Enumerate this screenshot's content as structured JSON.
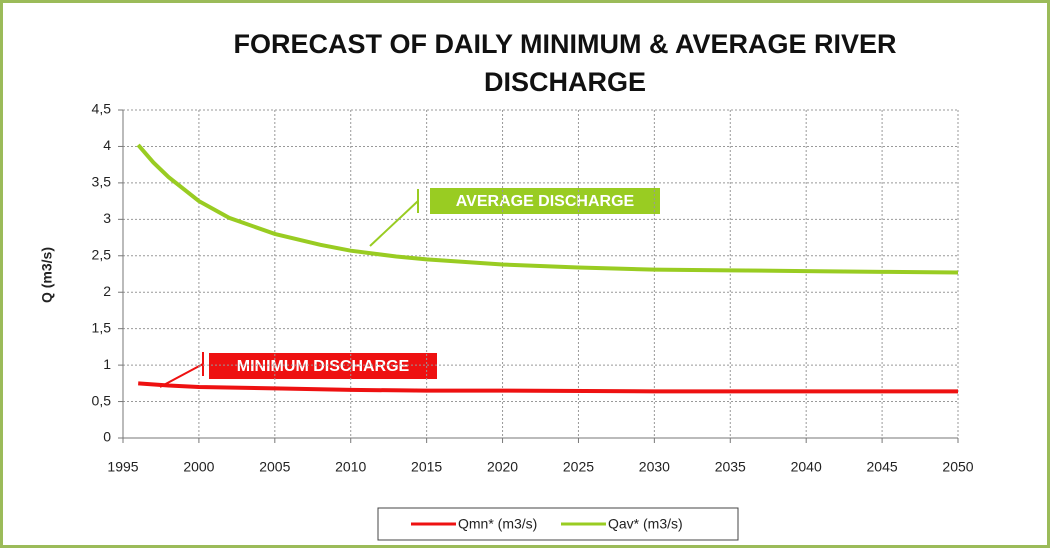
{
  "chart_data": {
    "type": "line",
    "title": "FORECAST OF DAILY MINIMUM & AVERAGE RIVER DISCHARGE",
    "y_label": "Q (m3/s)",
    "xlim": [
      1995,
      2050
    ],
    "xticks": [
      1995,
      2000,
      2005,
      2010,
      2015,
      2020,
      2025,
      2030,
      2035,
      2040,
      2045,
      2050
    ],
    "ylim": [
      0,
      4.5
    ],
    "yticks": [
      0,
      {
        "value": 0.5,
        "label": "0,5"
      },
      1,
      {
        "value": 1.5,
        "label": "1,5"
      },
      2,
      {
        "value": 2.5,
        "label": "2,5"
      },
      3,
      {
        "value": 3.5,
        "label": "3,5"
      },
      4,
      {
        "value": 4.5,
        "label": "4,5"
      }
    ],
    "grid": true,
    "legend": "bottom",
    "series": [
      {
        "name": "Qmn* (m3/s)",
        "color": "#ee1111",
        "x": [
          1996,
          1998,
          2000,
          2005,
          2010,
          2015,
          2020,
          2030,
          2040,
          2050
        ],
        "values": [
          0.75,
          0.72,
          0.7,
          0.68,
          0.66,
          0.65,
          0.65,
          0.64,
          0.64,
          0.64
        ]
      },
      {
        "name": "Qav* (m3/s)",
        "color": "#99cc22",
        "x": [
          1996,
          1997,
          1998,
          2000,
          2002,
          2005,
          2008,
          2010,
          2013,
          2015,
          2020,
          2025,
          2030,
          2035,
          2040,
          2045,
          2050
        ],
        "values": [
          4.02,
          3.78,
          3.58,
          3.25,
          3.02,
          2.8,
          2.65,
          2.57,
          2.49,
          2.45,
          2.38,
          2.34,
          2.31,
          2.3,
          2.29,
          2.28,
          2.27
        ]
      }
    ],
    "annotations": [
      "MINIMUM DISCHARGE",
      "AVERAGE DISCHARGE"
    ]
  }
}
